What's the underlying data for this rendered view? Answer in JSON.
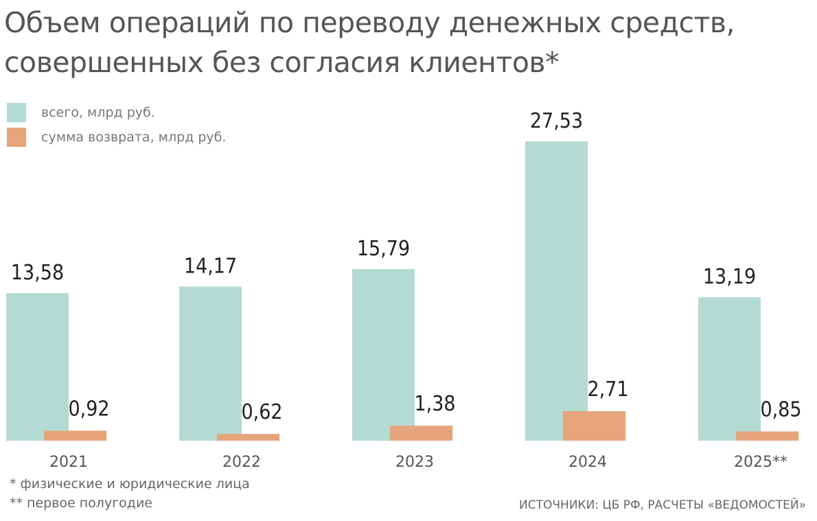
{
  "title_lines": [
    "Объем операций по переводу денежных средств,",
    "совершенных без согласия клиентов*"
  ],
  "chart_data": {
    "type": "bar",
    "title": "Объем операций по переводу денежных средств, совершенных без согласия клиентов*",
    "categories": [
      "2021",
      "2022",
      "2023",
      "2024",
      "2025**"
    ],
    "series": [
      {
        "name": "всего, млрд руб.",
        "color": "#b3dbd3",
        "values": [
          13.58,
          14.17,
          15.79,
          27.53,
          13.19
        ],
        "labels": [
          "13,58",
          "14,17",
          "15,79",
          "27,53",
          "13,19"
        ]
      },
      {
        "name": "сумма возврата, млрд руб.",
        "color": "#e6a47c",
        "values": [
          0.92,
          0.62,
          1.38,
          2.71,
          0.85
        ],
        "labels": [
          "0,92",
          "0,62",
          "1,38",
          "2,71",
          "0,85"
        ]
      }
    ],
    "ylim": [
      0,
      27.53
    ],
    "grid": false,
    "legend": "top-left",
    "xlabel": "",
    "ylabel": ""
  },
  "footnotes": [
    "* физические и юридические лица",
    "** первое полугодие"
  ],
  "source": "ИСТОЧНИКИ: ЦБ РФ, РАСЧЕТЫ «ВЕДОМОСТЕЙ»"
}
